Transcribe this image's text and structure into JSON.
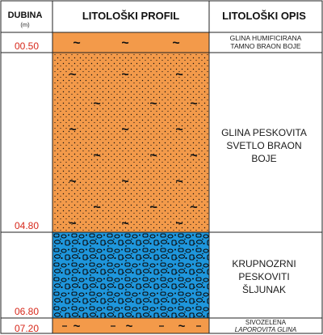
{
  "headers": {
    "depth_title": "DUBINA",
    "depth_unit": "(m)",
    "profile_title": "LITOLOŠKI PROFIL",
    "description_title": "LITOLOŠKI OPIS"
  },
  "layers": [
    {
      "bottom_depth": "00.50",
      "description": [
        "GLINA HUMIFICIRANA",
        "TAMNO BRAON BOJE"
      ],
      "color": "#f39a4a",
      "pattern": "clay"
    },
    {
      "bottom_depth": "04.80",
      "description": [
        "GLINA PESKOVITA",
        "SVETLO BRAON",
        "BOJE"
      ],
      "color": "#f39a4a",
      "pattern": "sandy-clay"
    },
    {
      "bottom_depth": "06.80",
      "description": [
        "KRUPNOZRNI",
        "PESKOVITI",
        "ŠLJUNAK"
      ],
      "color": "#1e96dc",
      "pattern": "gravel"
    },
    {
      "bottom_depth": "07.20",
      "description": [
        "SIVOZELENA",
        "LAPOROVITA GLINA"
      ],
      "color": "#f39a4a",
      "pattern": "marl"
    }
  ],
  "colors": {
    "depth_text": "#d7281b",
    "clay": "#f39a4a",
    "gravel": "#1e96dc",
    "grid": "#222222"
  }
}
